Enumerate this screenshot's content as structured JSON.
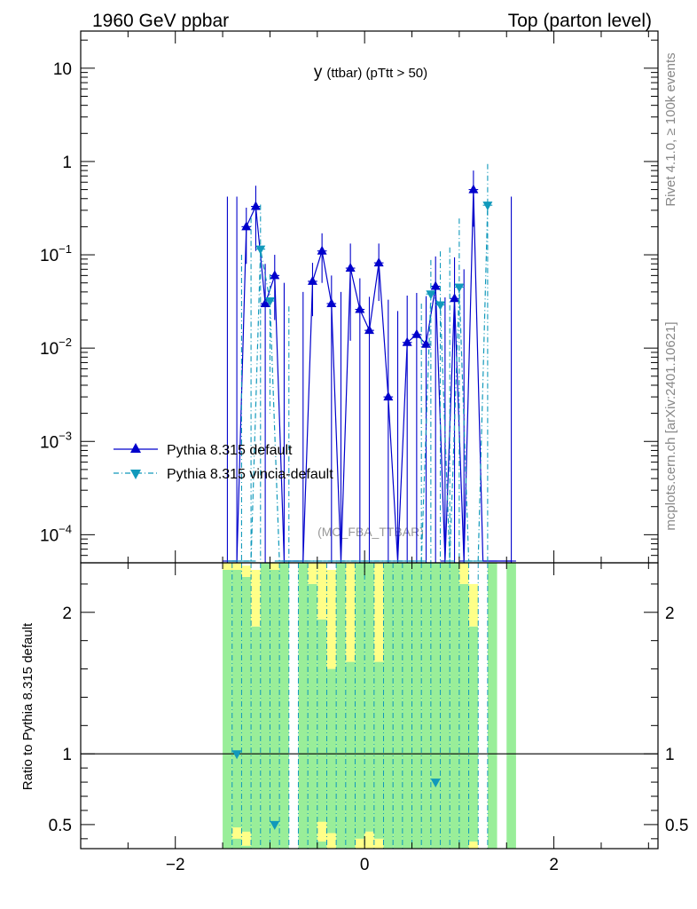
{
  "header": {
    "left": "1960 GeV ppbar",
    "right": "Top (parton level)"
  },
  "side_text": {
    "rivet": "Rivet 4.1.0, ≥ 100k events",
    "mcplots": "mcplots.cern.ch [arXiv:2401.10621]"
  },
  "colors": {
    "default": "#0000cc",
    "vincia": "#1199bb",
    "band_green": "#99ee99",
    "band_yellow": "#ffff88",
    "axis": "#000000",
    "watermark": "#999999"
  },
  "chart_data": {
    "type": "line",
    "title_main": "y",
    "title_sub": "(ttbar) (pTtt > 50)",
    "watermark": "(MC_FBA_TTBAR)",
    "xlim": [
      -3.0,
      3.1
    ],
    "ylim_log": [
      5e-05,
      25
    ],
    "ratio_ylim": [
      0.33,
      2.35
    ],
    "ratio_ylabel": "Ratio to Pythia 8.315 default",
    "x_ticks": [
      -2,
      0,
      2
    ],
    "x_tick_labels": [
      "−2",
      "0",
      "2"
    ],
    "y_ticks": [
      {
        "v": 10,
        "base": "10",
        "exp": ""
      },
      {
        "v": 1,
        "base": "1",
        "exp": ""
      },
      {
        "v": 0.1,
        "base": "10",
        "exp": "−1"
      },
      {
        "v": 0.01,
        "base": "10",
        "exp": "−2"
      },
      {
        "v": 0.001,
        "base": "10",
        "exp": "−3"
      },
      {
        "v": 0.0001,
        "base": "10",
        "exp": "−4"
      }
    ],
    "ratio_ticks": [
      {
        "v": 2,
        "label": "2"
      },
      {
        "v": 1,
        "label": "1"
      },
      {
        "v": 0.5,
        "label": "0.5"
      }
    ],
    "bin_width": 0.1,
    "series": [
      {
        "name": "Pythia 8.315 default",
        "marker": "triangle-up",
        "dash": "solid",
        "points": [
          {
            "x": -1.45,
            "y": 0,
            "err": 0.42
          },
          {
            "x": -1.35,
            "y": 0,
            "err": 0.42
          },
          {
            "x": -1.25,
            "y": 0.2,
            "err": 0.12
          },
          {
            "x": -1.15,
            "y": 0.33,
            "err": 0.22
          },
          {
            "x": -1.05,
            "y": 0.03,
            "err": 0.05
          },
          {
            "x": -0.95,
            "y": 0.06,
            "err": 0.04
          },
          {
            "x": -0.85,
            "y": 0,
            "err": 0.05
          },
          {
            "x": -0.75,
            "y": 0,
            "err": 0.0
          },
          {
            "x": -0.65,
            "y": 0,
            "err": 0.04
          },
          {
            "x": -0.55,
            "y": 0.052,
            "err": 0.03
          },
          {
            "x": -0.45,
            "y": 0.11,
            "err": 0.06
          },
          {
            "x": -0.35,
            "y": 0.03,
            "err": 0.03
          },
          {
            "x": -0.25,
            "y": 0,
            "err": 0.04
          },
          {
            "x": -0.15,
            "y": 0.072,
            "err": 0.06
          },
          {
            "x": -0.05,
            "y": 0.026,
            "err": 0.03
          },
          {
            "x": 0.05,
            "y": 0.0155,
            "err": 0.02
          },
          {
            "x": 0.15,
            "y": 0.082,
            "err": 0.05
          },
          {
            "x": 0.25,
            "y": 0.003,
            "err": 0.03
          },
          {
            "x": 0.35,
            "y": 0,
            "err": 0.025
          },
          {
            "x": 0.45,
            "y": 0.0115,
            "err": 0.025
          },
          {
            "x": 0.55,
            "y": 0.014,
            "err": 0.025
          },
          {
            "x": 0.65,
            "y": 0.011,
            "err": 0.025
          },
          {
            "x": 0.75,
            "y": 0.046,
            "err": 0.05
          },
          {
            "x": 0.85,
            "y": 0,
            "err": 0.035
          },
          {
            "x": 0.95,
            "y": 0.034,
            "err": 0.06
          },
          {
            "x": 1.05,
            "y": 0,
            "err": 0.07
          },
          {
            "x": 1.15,
            "y": 0.5,
            "err": 0.3
          },
          {
            "x": 1.25,
            "y": 0,
            "err": 0.0
          },
          {
            "x": 1.35,
            "y": 0,
            "err": 0.0
          },
          {
            "x": 1.55,
            "y": 0,
            "err": 0.42
          }
        ]
      },
      {
        "name": "Pythia 8.315 vincia-default",
        "marker": "triangle-down",
        "dash": "dashdot",
        "points": [
          {
            "x": -1.4,
            "y": 0,
            "err": 0.0
          },
          {
            "x": -1.3,
            "y": 0,
            "err": 0.1
          },
          {
            "x": -1.2,
            "y": 0,
            "err": 0.25
          },
          {
            "x": -1.1,
            "y": 0.115,
            "err": 0.23
          },
          {
            "x": -1.0,
            "y": 0.032,
            "err": 0.03
          },
          {
            "x": -0.9,
            "y": 0,
            "err": 0.0
          },
          {
            "x": -0.8,
            "y": 0,
            "err": 0.028
          },
          {
            "x": -0.7,
            "y": 0,
            "err": 0.0
          },
          {
            "x": -0.6,
            "y": 0,
            "err": 0.0
          },
          {
            "x": -0.5,
            "y": 0,
            "err": 0.0
          },
          {
            "x": -0.4,
            "y": 0,
            "err": 0.0
          },
          {
            "x": -0.3,
            "y": 0,
            "err": 0.0
          },
          {
            "x": -0.2,
            "y": 0,
            "err": 0.0
          },
          {
            "x": -0.1,
            "y": 0,
            "err": 0.0
          },
          {
            "x": 0.0,
            "y": 0,
            "err": 0.0
          },
          {
            "x": 0.1,
            "y": 0,
            "err": 0.0
          },
          {
            "x": 0.2,
            "y": 0,
            "err": 0.0
          },
          {
            "x": 0.3,
            "y": 0,
            "err": 0.0
          },
          {
            "x": 0.4,
            "y": 0,
            "err": 0.0
          },
          {
            "x": 0.5,
            "y": 0,
            "err": 0.0
          },
          {
            "x": 0.6,
            "y": 0,
            "err": 0.03
          },
          {
            "x": 0.7,
            "y": 0.038,
            "err": 0.05
          },
          {
            "x": 0.8,
            "y": 0.029,
            "err": 0.08
          },
          {
            "x": 0.9,
            "y": 0,
            "err": 0.12
          },
          {
            "x": 1.0,
            "y": 0.045,
            "err": 0.2
          },
          {
            "x": 1.1,
            "y": 0,
            "err": 0.0
          },
          {
            "x": 1.2,
            "y": 0,
            "err": 0.0
          },
          {
            "x": 1.3,
            "y": 0.34,
            "err": 0.6
          }
        ]
      }
    ],
    "ratio_points": [
      {
        "x": -1.35,
        "y": 1.0
      },
      {
        "x": -0.95,
        "y": 0.5
      },
      {
        "x": 0.75,
        "y": 0.8
      }
    ],
    "ratio_bands": [
      {
        "x0": -1.5,
        "x1": -1.4,
        "g": [
          0.33,
          2.35
        ],
        "yl": [
          [
            2.3,
            2.35
          ]
        ]
      },
      {
        "x0": -1.4,
        "x1": -1.3,
        "g": [
          0.33,
          2.35
        ],
        "yl": [
          [
            2.3,
            2.35
          ],
          [
            0.4,
            0.48
          ]
        ]
      },
      {
        "x0": -1.3,
        "x1": -1.2,
        "g": [
          0.33,
          2.25
        ],
        "yl": [
          [
            2.25,
            2.33
          ],
          [
            0.35,
            0.45
          ]
        ]
      },
      {
        "x0": -1.2,
        "x1": -1.1,
        "g": [
          0.33,
          1.9
        ],
        "yl": [
          [
            1.9,
            2.3
          ]
        ]
      },
      {
        "x0": -1.1,
        "x1": -1.0,
        "g": [
          0.33,
          2.35
        ],
        "yl": []
      },
      {
        "x0": -1.0,
        "x1": -0.9,
        "g": [
          0.33,
          2.35
        ],
        "yl": [
          [
            2.3,
            2.35
          ]
        ]
      },
      {
        "x0": -0.9,
        "x1": -0.8,
        "g": [
          0.33,
          2.35
        ],
        "yl": []
      },
      {
        "x0": -0.7,
        "x1": -0.6,
        "g": [
          0.33,
          2.35
        ],
        "yl": []
      },
      {
        "x0": -0.6,
        "x1": -0.5,
        "g": [
          0.33,
          2.2
        ],
        "yl": [
          [
            2.2,
            2.35
          ]
        ]
      },
      {
        "x0": -0.5,
        "x1": -0.4,
        "g": [
          0.33,
          1.95
        ],
        "yl": [
          [
            1.95,
            2.35
          ],
          [
            0.38,
            0.52
          ]
        ]
      },
      {
        "x0": -0.4,
        "x1": -0.3,
        "g": [
          0.33,
          1.6
        ],
        "yl": [
          [
            1.6,
            2.3
          ],
          [
            0.33,
            0.44
          ]
        ]
      },
      {
        "x0": -0.3,
        "x1": -0.2,
        "g": [
          0.33,
          2.35
        ],
        "yl": []
      },
      {
        "x0": -0.2,
        "x1": -0.1,
        "g": [
          0.33,
          1.65
        ],
        "yl": [
          [
            1.65,
            2.35
          ]
        ]
      },
      {
        "x0": -0.1,
        "x1": 0.0,
        "g": [
          0.4,
          2.35
        ],
        "yl": [
          [
            0.33,
            0.4
          ]
        ]
      },
      {
        "x0": 0.0,
        "x1": 0.1,
        "g": [
          0.45,
          2.35
        ],
        "yl": [
          [
            0.33,
            0.45
          ]
        ]
      },
      {
        "x0": 0.1,
        "x1": 0.2,
        "g": [
          0.4,
          1.65
        ],
        "yl": [
          [
            1.65,
            2.35
          ],
          [
            0.33,
            0.4
          ]
        ]
      },
      {
        "x0": 0.2,
        "x1": 0.3,
        "g": [
          0.33,
          2.35
        ],
        "yl": []
      },
      {
        "x0": 0.3,
        "x1": 0.4,
        "g": [
          0.33,
          2.35
        ],
        "yl": []
      },
      {
        "x0": 0.4,
        "x1": 0.5,
        "g": [
          0.33,
          2.35
        ],
        "yl": []
      },
      {
        "x0": 0.5,
        "x1": 0.6,
        "g": [
          0.33,
          2.35
        ],
        "yl": []
      },
      {
        "x0": 0.6,
        "x1": 0.7,
        "g": [
          0.33,
          2.35
        ],
        "yl": []
      },
      {
        "x0": 0.7,
        "x1": 0.8,
        "g": [
          0.33,
          2.35
        ],
        "yl": []
      },
      {
        "x0": 0.8,
        "x1": 0.9,
        "g": [
          0.33,
          2.35
        ],
        "yl": []
      },
      {
        "x0": 0.9,
        "x1": 1.0,
        "g": [
          0.33,
          2.35
        ],
        "yl": []
      },
      {
        "x0": 1.0,
        "x1": 1.1,
        "g": [
          0.33,
          2.2
        ],
        "yl": [
          [
            2.2,
            2.35
          ]
        ]
      },
      {
        "x0": 1.1,
        "x1": 1.2,
        "g": [
          0.38,
          1.9
        ],
        "yl": [
          [
            1.9,
            2.2
          ],
          [
            0.33,
            0.38
          ]
        ]
      },
      {
        "x0": 1.3,
        "x1": 1.4,
        "g": [
          0.33,
          2.35
        ],
        "yl": []
      },
      {
        "x0": 1.5,
        "x1": 1.6,
        "g": [
          0.33,
          2.35
        ],
        "yl": []
      }
    ]
  }
}
